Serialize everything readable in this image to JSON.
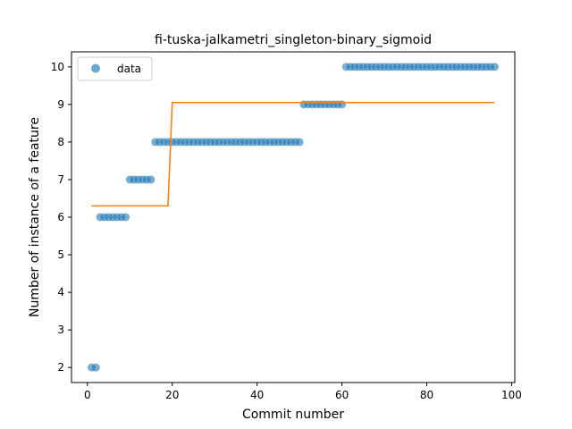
{
  "chart_data": {
    "type": "scatter",
    "title": "fi-tuska-jalkametri_singleton-binary_sigmoid",
    "xlabel": "Commit number",
    "ylabel": "Number of instance of a feature",
    "xlim": [
      -3.75,
      100.75
    ],
    "ylim": [
      1.6,
      10.4
    ],
    "xticks": [
      0,
      20,
      40,
      60,
      80,
      100
    ],
    "yticks": [
      2,
      3,
      4,
      5,
      6,
      7,
      8,
      9,
      10
    ],
    "grid": false,
    "legend": {
      "placement": "top-left",
      "entries": [
        "data"
      ]
    },
    "series": [
      {
        "name": "data",
        "kind": "scatter",
        "color": "#1f77b4",
        "segments": [
          {
            "x_start": 1,
            "x_end": 2,
            "y": 2
          },
          {
            "x_start": 3,
            "x_end": 9,
            "y": 6
          },
          {
            "x_start": 10,
            "x_end": 15,
            "y": 7
          },
          {
            "x_start": 16,
            "x_end": 50,
            "y": 8
          },
          {
            "x_start": 51,
            "x_end": 60,
            "y": 9
          },
          {
            "x_start": 61,
            "x_end": 96,
            "y": 10
          }
        ]
      },
      {
        "kind": "line",
        "color": "#ff7f0e",
        "x": [
          1,
          19,
          20,
          96
        ],
        "y": [
          6.3,
          6.3,
          9.05,
          9.05
        ]
      }
    ]
  }
}
